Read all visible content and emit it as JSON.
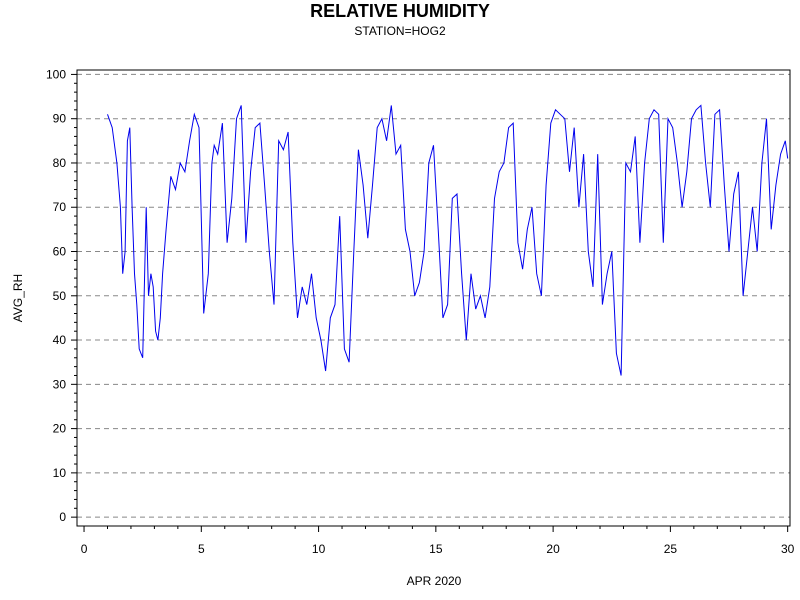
{
  "chart_data": {
    "type": "line",
    "title": "RELATIVE HUMIDITY",
    "subtitle": "STATION=HOG2",
    "xlabel": "APR 2020",
    "ylabel": "AVG_RH",
    "xlim": [
      -0.3,
      30.1
    ],
    "ylim": [
      -2,
      101
    ],
    "xticks": [
      0,
      5,
      10,
      15,
      20,
      25,
      30
    ],
    "yticks": [
      0,
      10,
      20,
      30,
      40,
      50,
      60,
      70,
      80,
      90,
      100
    ],
    "grid": "horizontal-dashed",
    "line_color": "#0000ee",
    "series": [
      {
        "x": [
          1.0,
          1.2,
          1.4,
          1.55,
          1.65,
          1.75,
          1.85,
          1.95,
          2.05,
          2.15,
          2.25,
          2.35,
          2.5,
          2.65,
          2.75,
          2.85,
          2.95,
          3.05,
          3.15,
          3.25,
          3.35,
          3.5,
          3.7,
          3.9,
          4.1,
          4.3,
          4.5,
          4.7,
          4.9,
          5.1,
          5.3,
          5.45,
          5.55,
          5.7,
          5.9,
          6.1,
          6.3,
          6.5,
          6.7,
          6.9,
          7.1,
          7.3,
          7.5,
          7.7,
          7.9,
          8.1,
          8.3,
          8.5,
          8.7,
          8.9,
          9.1,
          9.3,
          9.5,
          9.7,
          9.9,
          10.1,
          10.3,
          10.5,
          10.7,
          10.9,
          11.1,
          11.3,
          11.5,
          11.7,
          11.9,
          12.1,
          12.3,
          12.5,
          12.7,
          12.9,
          13.1,
          13.3,
          13.5,
          13.7,
          13.9,
          14.1,
          14.3,
          14.5,
          14.7,
          14.9,
          15.1,
          15.3,
          15.5,
          15.7,
          15.9,
          16.1,
          16.3,
          16.5,
          16.7,
          16.9,
          17.1,
          17.3,
          17.5,
          17.7,
          17.9,
          18.1,
          18.3,
          18.5,
          18.7,
          18.9,
          19.1,
          19.3,
          19.5,
          19.7,
          19.9,
          20.1,
          20.3,
          20.5,
          20.7,
          20.9,
          21.1,
          21.3,
          21.5,
          21.7,
          21.9,
          22.1,
          22.3,
          22.5,
          22.7,
          22.9,
          23.1,
          23.3,
          23.5,
          23.7,
          23.9,
          24.1,
          24.3,
          24.5,
          24.7,
          24.9,
          25.1,
          25.3,
          25.5,
          25.7,
          25.9,
          26.1,
          26.3,
          26.5,
          26.7,
          26.9,
          27.1,
          27.3,
          27.5,
          27.7,
          27.9,
          28.1,
          28.3,
          28.5,
          28.7,
          28.9,
          29.1,
          29.3,
          29.5,
          29.7,
          29.9,
          30.0
        ],
        "values": [
          91,
          88,
          80,
          70,
          55,
          60,
          85,
          88,
          70,
          55,
          48,
          38,
          36,
          70,
          50,
          55,
          52,
          42,
          40,
          45,
          55,
          65,
          77,
          74,
          80,
          78,
          85,
          91,
          88,
          46,
          55,
          80,
          84,
          82,
          89,
          62,
          72,
          90,
          93,
          62,
          78,
          88,
          89,
          75,
          60,
          48,
          85,
          83,
          87,
          62,
          45,
          52,
          48,
          55,
          45,
          40,
          33,
          45,
          48,
          68,
          38,
          35,
          60,
          83,
          75,
          63,
          75,
          88,
          90,
          85,
          93,
          82,
          84,
          65,
          60,
          50,
          53,
          60,
          80,
          84,
          65,
          45,
          48,
          72,
          73,
          55,
          40,
          55,
          47,
          50,
          45,
          52,
          72,
          78,
          80,
          88,
          89,
          62,
          56,
          65,
          70,
          55,
          50,
          75,
          89,
          92,
          91,
          90,
          78,
          88,
          70,
          82,
          60,
          52,
          82,
          48,
          55,
          60,
          37,
          32,
          80,
          78,
          86,
          62,
          80,
          90,
          92,
          91,
          62,
          90,
          88,
          80,
          70,
          78,
          90,
          92,
          93,
          80,
          70,
          91,
          92,
          75,
          60,
          73,
          78,
          50,
          60,
          70,
          60,
          80,
          90,
          65,
          75,
          82,
          85,
          81
        ]
      }
    ]
  }
}
